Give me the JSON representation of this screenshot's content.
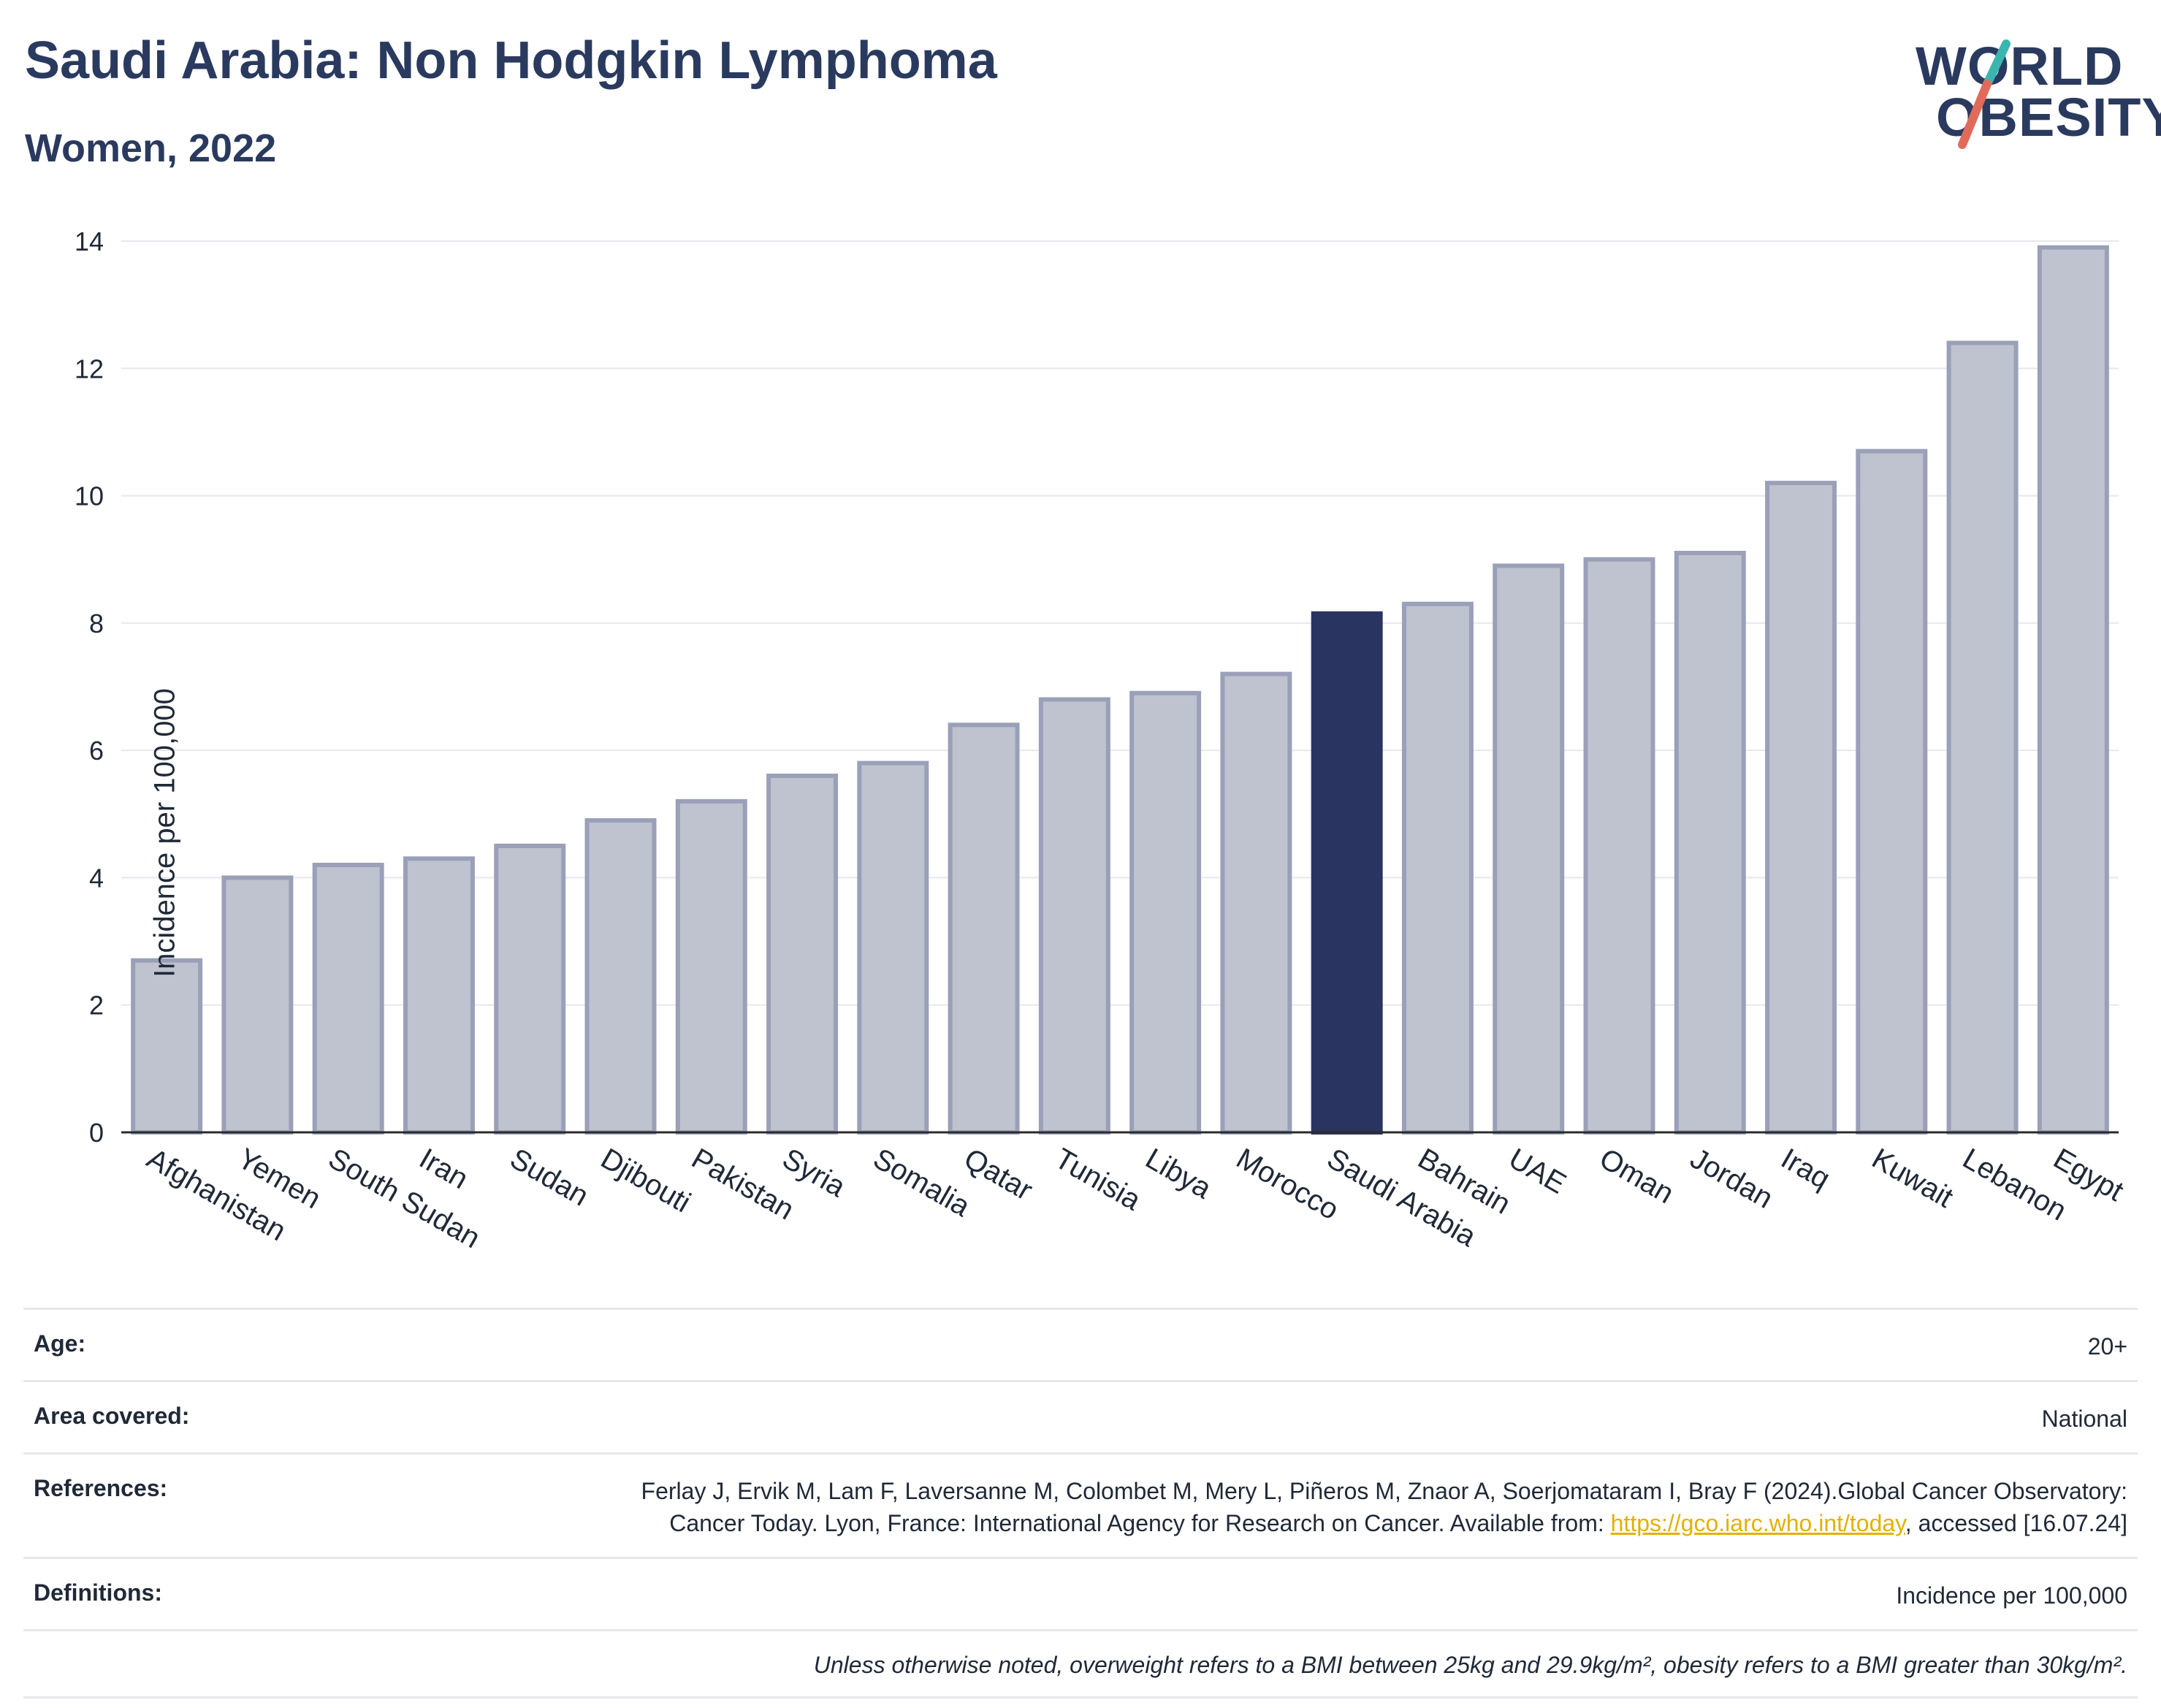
{
  "header": {
    "title": "Saudi Arabia: Non Hodgkin Lymphoma",
    "subtitle": "Women, 2022"
  },
  "logo": {
    "line1": "WORLD",
    "line2": "OBESITY",
    "accent_teal": "#3bb5b0",
    "accent_coral": "#e06b5a"
  },
  "chart_data": {
    "type": "bar",
    "title": "Saudi Arabia: Non Hodgkin Lymphoma",
    "subtitle": "Women, 2022",
    "ylabel": "Incidence per 100,000",
    "ylim": [
      0,
      14
    ],
    "yticks": [
      0,
      2,
      4,
      6,
      8,
      10,
      12,
      14
    ],
    "grid": true,
    "highlight": "Saudi Arabia",
    "colors": {
      "bar": "#bfc2cf",
      "bar_border": "#9aa0b8",
      "highlight": "#2a3461"
    },
    "categories": [
      "Afghanistan",
      "Yemen",
      "South Sudan",
      "Iran",
      "Sudan",
      "Djibouti",
      "Pakistan",
      "Syria",
      "Somalia",
      "Qatar",
      "Tunisia",
      "Libya",
      "Morocco",
      "Saudi Arabia",
      "Bahrain",
      "UAE",
      "Oman",
      "Jordan",
      "Iraq",
      "Kuwait",
      "Lebanon",
      "Egypt"
    ],
    "values": [
      2.7,
      4.0,
      4.2,
      4.3,
      4.5,
      4.9,
      5.2,
      5.6,
      5.8,
      6.4,
      6.8,
      6.9,
      7.2,
      8.15,
      8.3,
      8.9,
      9.0,
      9.1,
      10.2,
      10.7,
      12.4,
      13.9
    ]
  },
  "meta": {
    "age_label": "Age:",
    "age_value": "20+",
    "area_label": "Area covered:",
    "area_value": "National",
    "references_label": "References:",
    "references_text_1": "Ferlay J, Ervik M, Lam F, Laversanne M, Colombet M, Mery L, Piñeros M, Znaor A, Soerjomataram I, Bray F (2024).Global Cancer Observatory: Cancer Today. Lyon, France: International Agency for Research on Cancer. Available from: ",
    "references_link": "https://gco.iarc.who.int/today",
    "references_text_2": ", accessed [16.07.24]",
    "definitions_label": "Definitions:",
    "definitions_value": "Incidence per 100,000",
    "note": "Unless otherwise noted, overweight refers to a BMI between 25kg and 29.9kg/m², obesity refers to a BMI greater than 30kg/m²."
  }
}
